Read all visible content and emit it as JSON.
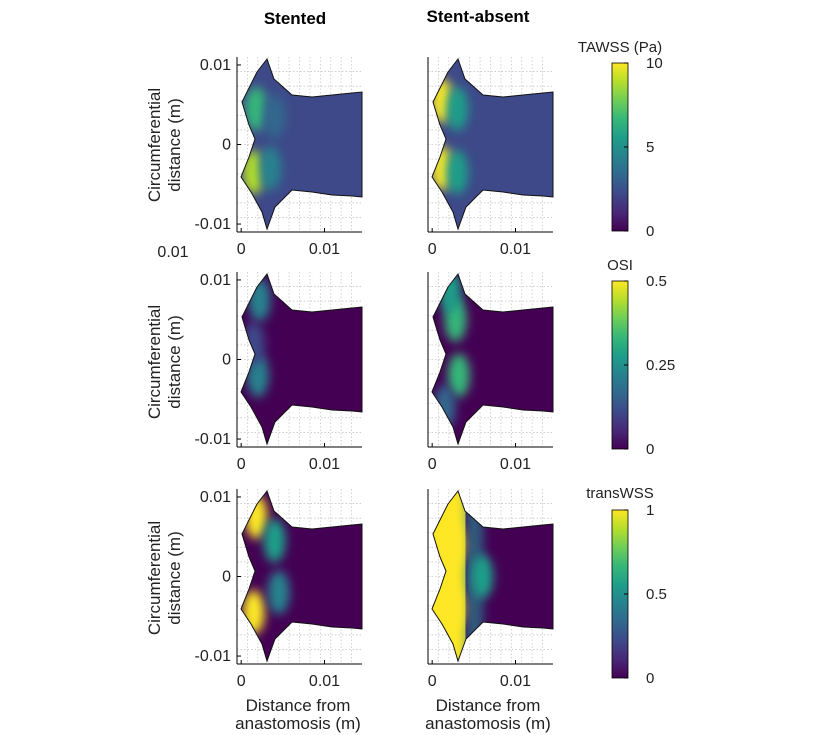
{
  "column_titles": [
    "Stented",
    "Stent-absent"
  ],
  "xlabel": [
    "Distance from",
    "anastomosis (m)"
  ],
  "ylabel": [
    "Circumferential",
    "distance (m)"
  ],
  "stray_label": "0.01",
  "colors": {
    "viridis": [
      "#440154",
      "#482878",
      "#3e4989",
      "#31688e",
      "#26828e",
      "#1f9e89",
      "#35b779",
      "#6ece58",
      "#b5de2b",
      "#fde725"
    ],
    "background": "#ffffff"
  },
  "chart_data": [
    {
      "type": "heatmap",
      "row": "TAWSS",
      "column": "Stented",
      "x_ticks": [
        "0",
        "0.01"
      ],
      "y_ticks": [
        "0.01",
        "0",
        "-0.01"
      ],
      "xlim": [
        -0.0005,
        0.0145
      ],
      "ylim": [
        -0.011,
        0.011
      ],
      "grid": true,
      "hot": [
        {
          "x": 0.0018,
          "y": 0.0045,
          "level": 0.65
        },
        {
          "x": 0.0015,
          "y": -0.0035,
          "level": 0.85
        },
        {
          "x": 0.004,
          "y": 0.0035,
          "level": 0.35
        },
        {
          "x": 0.0035,
          "y": -0.003,
          "level": 0.45
        }
      ],
      "base_level": 0.22
    },
    {
      "type": "heatmap",
      "row": "TAWSS",
      "column": "Stent-absent",
      "x_ticks": [
        "0",
        "0.01"
      ],
      "y_ticks": [],
      "xlim": [
        -0.0005,
        0.0145
      ],
      "ylim": [
        -0.011,
        0.011
      ],
      "grid": true,
      "hot": [
        {
          "x": 0.0012,
          "y": 0.0055,
          "level": 0.95
        },
        {
          "x": 0.0012,
          "y": -0.003,
          "level": 0.98
        },
        {
          "x": 0.003,
          "y": 0.0045,
          "level": 0.55
        },
        {
          "x": 0.003,
          "y": -0.0035,
          "level": 0.6
        }
      ],
      "base_level": 0.22
    },
    {
      "type": "heatmap",
      "row": "OSI",
      "column": "Stented",
      "x_ticks": [
        "0",
        "0.01"
      ],
      "y_ticks": [
        "0.01",
        "0",
        "-0.01"
      ],
      "xlim": [
        -0.0005,
        0.0145
      ],
      "ylim": [
        -0.011,
        0.011
      ],
      "grid": true,
      "hot": [
        {
          "x": 0.0022,
          "y": 0.0075,
          "level": 0.45
        },
        {
          "x": 0.002,
          "y": -0.002,
          "level": 0.4
        },
        {
          "x": 0.0015,
          "y": 0.002,
          "level": 0.25
        }
      ],
      "base_level": 0.02
    },
    {
      "type": "heatmap",
      "row": "OSI",
      "column": "Stent-absent",
      "x_ticks": [
        "0",
        "0.01"
      ],
      "y_ticks": [],
      "xlim": [
        -0.0005,
        0.0145
      ],
      "ylim": [
        -0.011,
        0.011
      ],
      "grid": true,
      "hot": [
        {
          "x": 0.0028,
          "y": 0.005,
          "level": 0.7
        },
        {
          "x": 0.0032,
          "y": -0.002,
          "level": 0.65
        },
        {
          "x": 0.0022,
          "y": 0.0085,
          "level": 0.55
        },
        {
          "x": 0.0015,
          "y": -0.006,
          "level": 0.35
        }
      ],
      "base_level": 0.02
    },
    {
      "type": "heatmap",
      "row": "transWSS",
      "column": "Stented",
      "x_ticks": [
        "0",
        "0.01"
      ],
      "y_ticks": [
        "0.01",
        "0",
        "-0.01"
      ],
      "xlim": [
        -0.0005,
        0.0145
      ],
      "ylim": [
        -0.011,
        0.011
      ],
      "grid": true,
      "hot": [
        {
          "x": 0.0018,
          "y": 0.0075,
          "level": 0.95
        },
        {
          "x": 0.0015,
          "y": -0.0045,
          "level": 0.95
        },
        {
          "x": 0.004,
          "y": 0.0045,
          "level": 0.5
        },
        {
          "x": 0.0045,
          "y": -0.002,
          "level": 0.45
        }
      ],
      "base_level": 0.05
    },
    {
      "type": "heatmap",
      "row": "transWSS",
      "column": "Stent-absent",
      "x_ticks": [
        "0",
        "0.01"
      ],
      "y_ticks": [],
      "xlim": [
        -0.0005,
        0.0145
      ],
      "ylim": [
        -0.011,
        0.011
      ],
      "grid": true,
      "hot": [
        {
          "x": 0.0025,
          "y": 0.004,
          "level": 1.0
        },
        {
          "x": 0.0025,
          "y": -0.004,
          "level": 1.0
        },
        {
          "x": 0.006,
          "y": 0.0,
          "level": 0.55
        }
      ],
      "base_level": 0.05,
      "saturated_width": 0.004
    }
  ],
  "colorbars": [
    {
      "title": "TAWSS (Pa)",
      "ticks": [
        "10",
        "5",
        "0"
      ],
      "range": [
        0,
        10
      ]
    },
    {
      "title": "OSI",
      "ticks": [
        "0.5",
        "0.25",
        "0"
      ],
      "range": [
        0,
        0.5
      ]
    },
    {
      "title": "transWSS",
      "ticks": [
        "1",
        "0.5",
        "0"
      ],
      "range": [
        0,
        1
      ]
    }
  ]
}
